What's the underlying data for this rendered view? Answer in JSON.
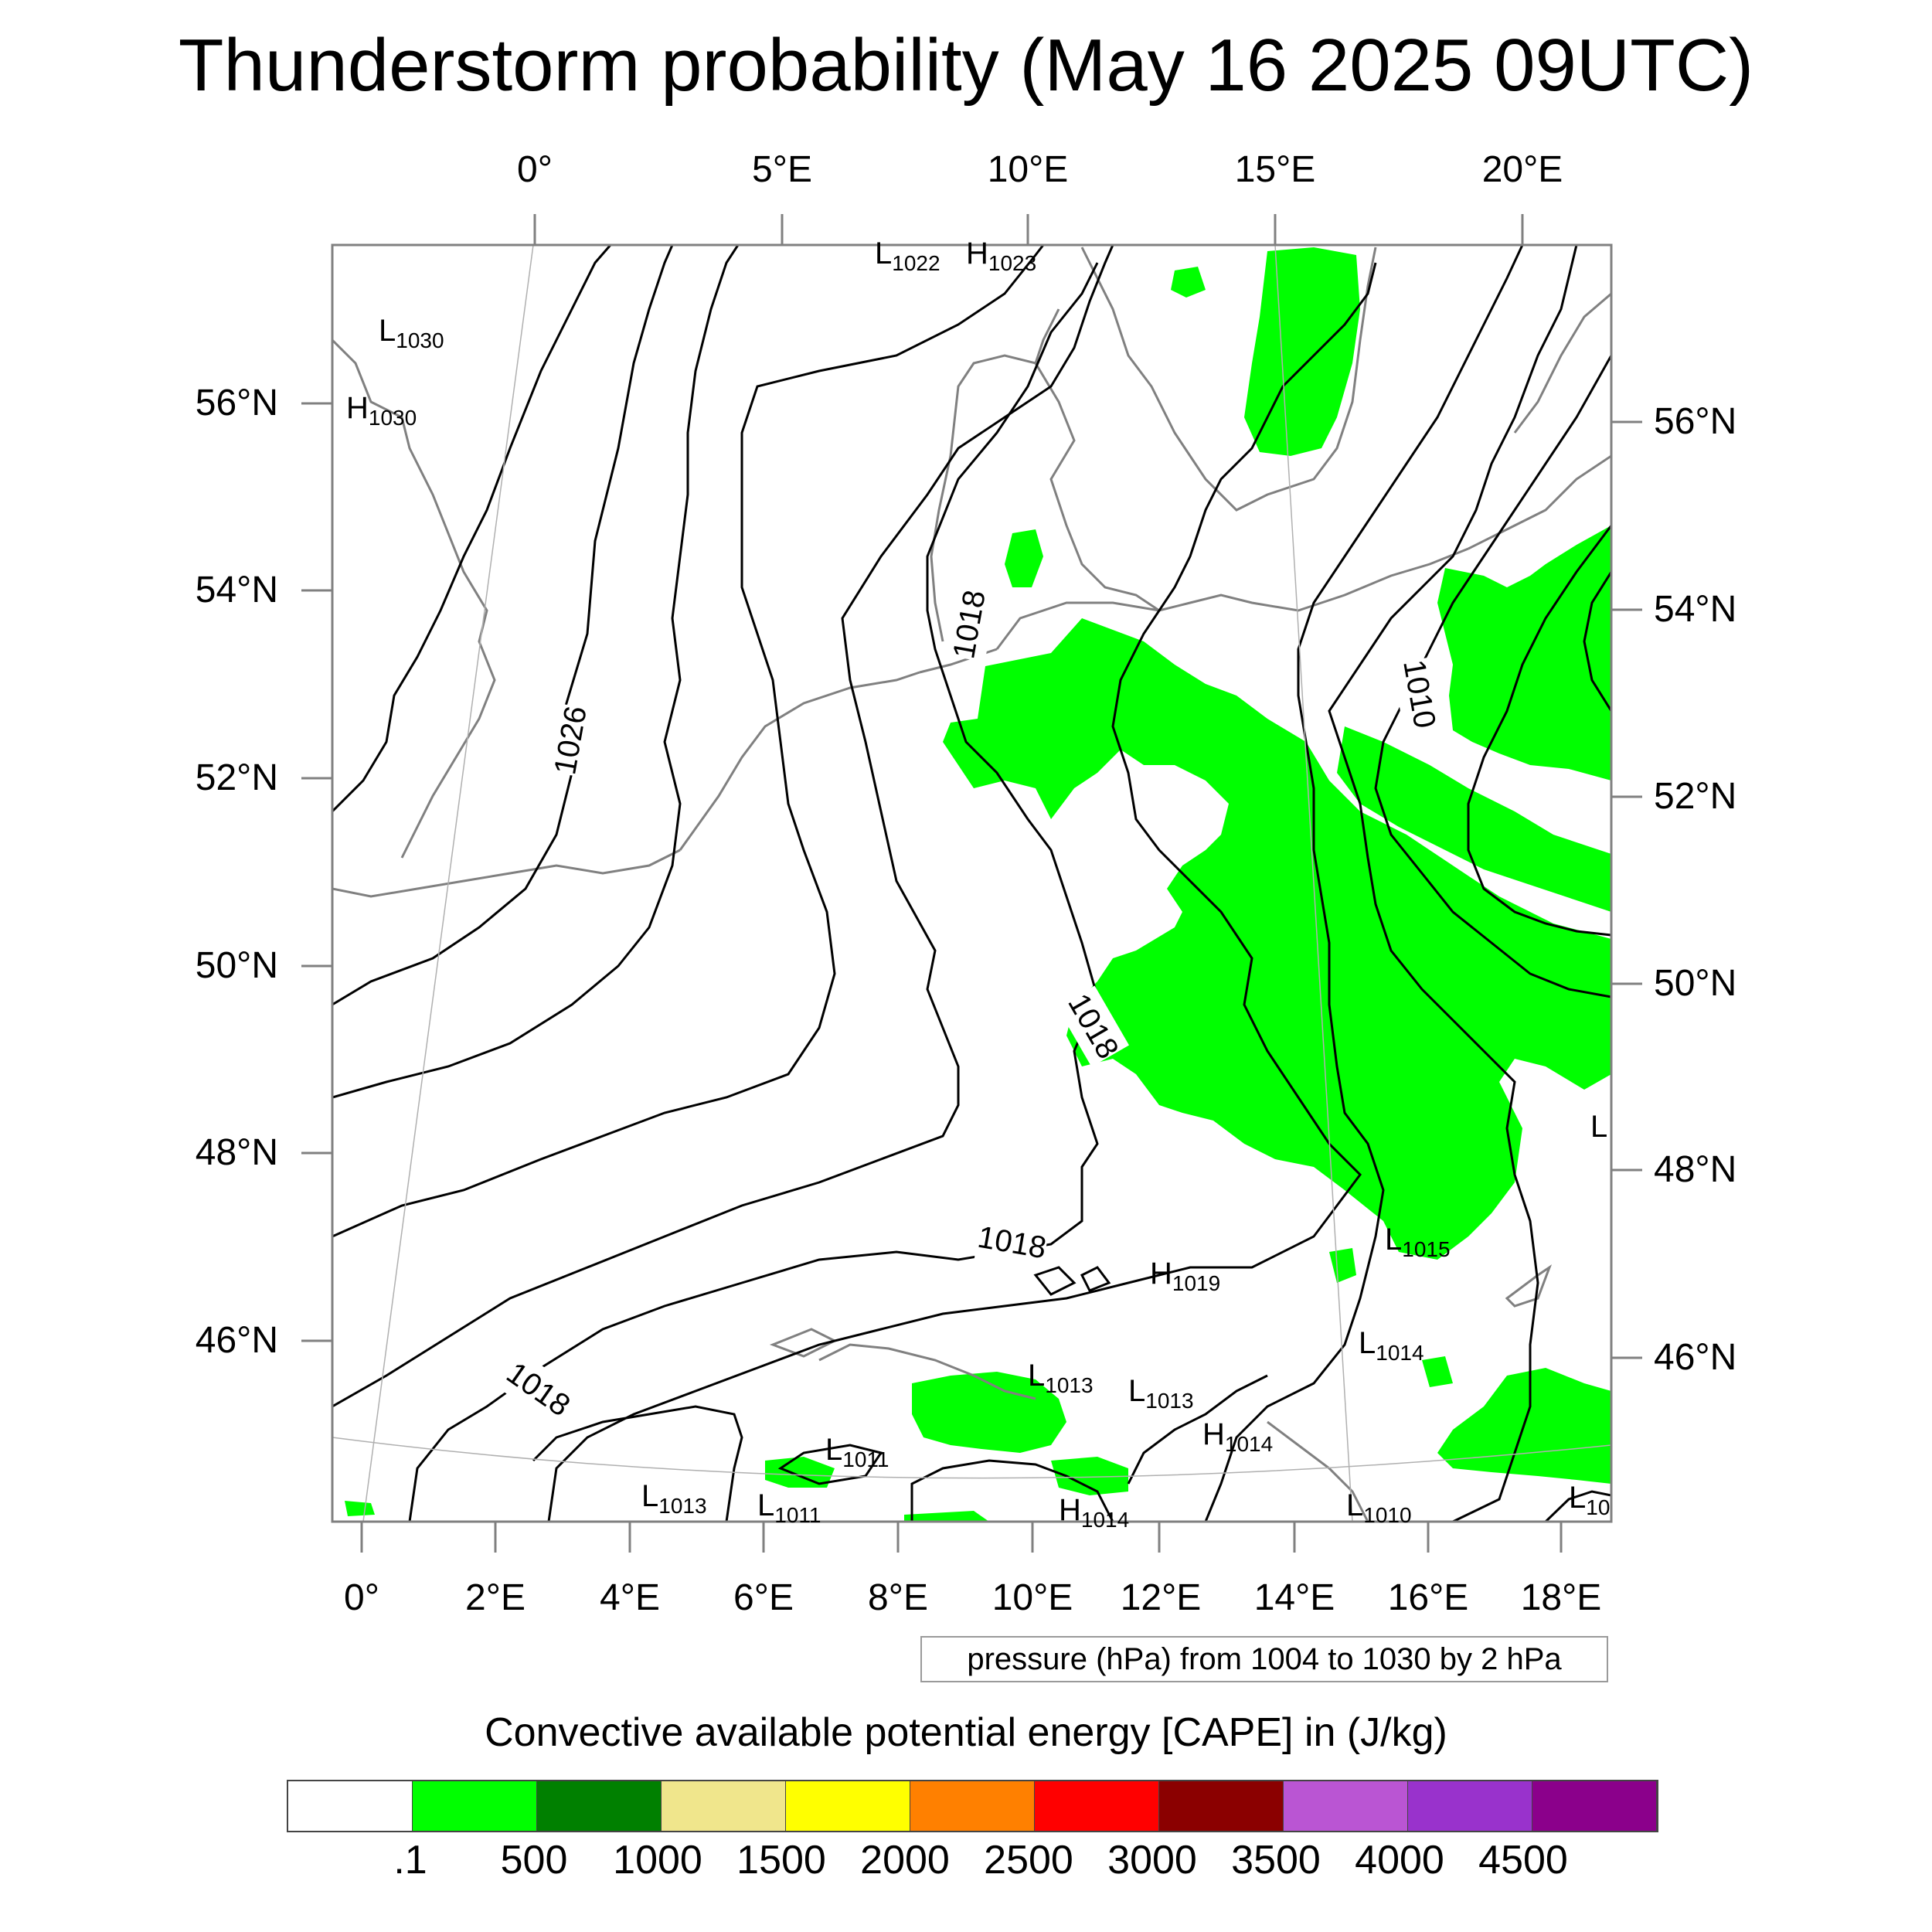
{
  "title": "Thunderstorm probability (May 16 2025 09UTC)",
  "top_lon_labels": [
    "0°",
    "5°E",
    "10°E",
    "15°E",
    "20°E"
  ],
  "bottom_lon_labels": [
    "0°",
    "2°E",
    "4°E",
    "6°E",
    "8°E",
    "10°E",
    "12°E",
    "14°E",
    "16°E",
    "18°E"
  ],
  "left_lat_labels": [
    "56°N",
    "54°N",
    "52°N",
    "50°N",
    "48°N",
    "46°N"
  ],
  "right_lat_labels": [
    "56°N",
    "54°N",
    "52°N",
    "50°N",
    "48°N",
    "46°N"
  ],
  "isobar_labels": [
    "1026",
    "1018",
    "1018",
    "1010",
    "1018",
    "1018"
  ],
  "pressure_centers": [
    {
      "type": "L",
      "value": "1030"
    },
    {
      "type": "H",
      "value": "1030"
    },
    {
      "type": "L",
      "value": "1022"
    },
    {
      "type": "H",
      "value": "1023"
    },
    {
      "type": "H",
      "value": "1019"
    },
    {
      "type": "L",
      "value": "1015"
    },
    {
      "type": "L",
      "value": "1014"
    },
    {
      "type": "L",
      "value": "1013"
    },
    {
      "type": "L",
      "value": "1013"
    },
    {
      "type": "H",
      "value": "1014"
    },
    {
      "type": "L",
      "value": "1011"
    },
    {
      "type": "L",
      "value": "1013"
    },
    {
      "type": "L",
      "value": "1011"
    },
    {
      "type": "H",
      "value": "1014"
    },
    {
      "type": "L",
      "value": "1010"
    },
    {
      "type": "L",
      "value": "10"
    },
    {
      "type": "L",
      "value": ""
    }
  ],
  "contour_note": "pressure (hPa) from 1004 to 1030 by 2 hPa",
  "colorbar": {
    "title": "Convective available potential energy [CAPE] in (J/kg)",
    "colors": [
      "#ffffff",
      "#00ff00",
      "#008000",
      "#f0e68c",
      "#ffff00",
      "#ff8000",
      "#ff0000",
      "#8b0000",
      "#ba55d3",
      "#9932cc",
      "#8b008b"
    ],
    "tick_labels": [
      ".1",
      "500",
      "1000",
      "1500",
      "2000",
      "2500",
      "3000",
      "3500",
      "4000",
      "4500"
    ]
  },
  "colors": {
    "cape_fill": "#00ff00",
    "coastline": "#808080",
    "isobar": "#000000",
    "frame": "#808080"
  }
}
